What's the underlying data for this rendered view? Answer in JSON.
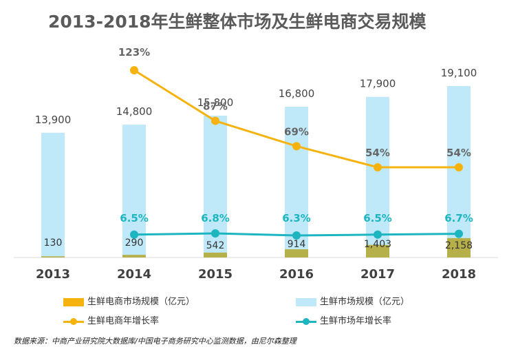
{
  "title": "2013-2018年生鲜整体市场及生鲜电商交易规模",
  "source": "数据来源：中商产业研究院大数据库/中国电子商务研究中心监测数据，由尼尔森整理",
  "colors": {
    "market_bar": "#bfe9f8",
    "ecommerce_bar": "#b5b049",
    "ecommerce_growth": "#f6b30f",
    "market_growth": "#1cb5c0",
    "ecommerce_growth_label": "#666666",
    "market_growth_label": "#1cb5c0"
  },
  "legend": [
    {
      "key": "ecommerce_bar",
      "label": "生鲜电商市场规模（亿元）",
      "swatch": "rect",
      "color": "#f6b30f"
    },
    {
      "key": "market_bar",
      "label": "生鲜市场规模（亿元）",
      "swatch": "rect",
      "color": "#bfe9f8"
    },
    {
      "key": "ecommerce_growth",
      "label": "生鲜电商年增长率",
      "swatch": "line",
      "color": "#f6b30f"
    },
    {
      "key": "market_growth",
      "label": "生鲜市场年增长率",
      "swatch": "line",
      "color": "#1cb5c0"
    }
  ],
  "chart_data": {
    "type": "bar",
    "title": "2013-2018年生鲜整体市场及生鲜电商交易规模",
    "categories": [
      "2013",
      "2014",
      "2015",
      "2016",
      "2017",
      "2018"
    ],
    "series": [
      {
        "name": "生鲜市场规模（亿元）",
        "type": "bar",
        "values": [
          13900,
          14800,
          15800,
          16800,
          17900,
          19100
        ],
        "labels": [
          "13,900",
          "14,800",
          "15,800",
          "16,800",
          "17,900",
          "19,100"
        ]
      },
      {
        "name": "生鲜电商市场规模（亿元）",
        "type": "bar",
        "values": [
          130,
          290,
          542,
          914,
          1403,
          2158
        ],
        "labels": [
          "130",
          "290",
          "542",
          "914",
          "1,403",
          "2,158"
        ]
      },
      {
        "name": "生鲜电商年增长率",
        "type": "line",
        "values": [
          null,
          123,
          87,
          69,
          54,
          54
        ],
        "labels": [
          null,
          "123%",
          "87%",
          "69%",
          "54%",
          "54%"
        ]
      },
      {
        "name": "生鲜市场年增长率",
        "type": "line",
        "values": [
          null,
          6.5,
          6.8,
          6.3,
          6.5,
          6.7
        ],
        "labels": [
          null,
          "6.5%",
          "6.8%",
          "6.3%",
          "6.5%",
          "6.7%"
        ]
      }
    ],
    "ylim": [
      0,
      19100
    ],
    "growth_ylim": [
      0,
      123
    ],
    "grid": false,
    "legend_position": "bottom"
  }
}
